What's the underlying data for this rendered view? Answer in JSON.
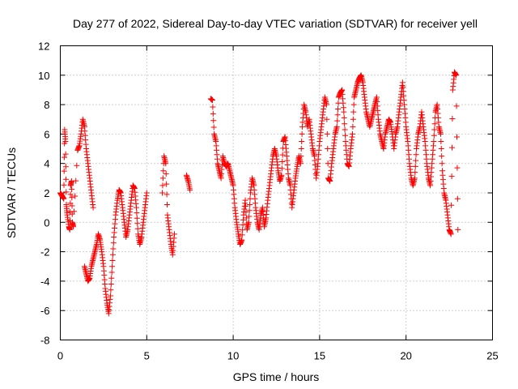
{
  "chart_data": {
    "type": "scatter",
    "title": "Day 277 of 2022, Sidereal Day-to-day VTEC variation (SDTVAR) for receiver yell",
    "xlabel": "GPS time / hours",
    "ylabel": "SDTVAR / TECUs",
    "xlim": [
      0,
      25
    ],
    "ylim": [
      -8,
      12
    ],
    "xticks": [
      0,
      5,
      10,
      15,
      20,
      25
    ],
    "yticks": [
      -8,
      -6,
      -4,
      -2,
      0,
      2,
      4,
      6,
      8,
      10,
      12
    ],
    "grid": true,
    "marker": "+",
    "color": "#ff0000",
    "series": [
      {
        "name": "SDTVAR",
        "x": [
          0.0,
          0.1,
          0.2,
          0.25,
          0.3,
          0.35,
          0.4,
          0.5,
          0.55,
          0.6,
          0.65,
          0.7,
          0.75,
          1.0,
          1.1,
          1.2,
          1.3,
          1.4,
          1.5,
          1.6,
          1.7,
          1.8,
          1.9,
          1.4,
          1.5,
          1.6,
          1.7,
          1.8,
          1.9,
          2.0,
          2.1,
          2.2,
          2.3,
          2.4,
          2.5,
          2.6,
          2.7,
          2.8,
          2.9,
          3.0,
          3.1,
          3.2,
          3.3,
          3.4,
          3.5,
          3.6,
          3.7,
          3.8,
          3.9,
          4.0,
          4.1,
          4.2,
          4.3,
          4.4,
          4.5,
          4.6,
          4.7,
          4.8,
          4.9,
          5.0,
          5.9,
          6.0,
          6.1,
          6.2,
          6.3,
          6.4,
          6.5,
          6.6,
          7.3,
          7.4,
          7.5,
          8.7,
          8.8,
          8.9,
          9.0,
          9.1,
          9.2,
          9.3,
          9.4,
          9.5,
          9.6,
          9.7,
          9.8,
          9.9,
          10.0,
          10.1,
          10.2,
          10.3,
          10.4,
          10.5,
          10.6,
          10.7,
          10.8,
          10.9,
          11.0,
          11.1,
          11.2,
          11.3,
          11.4,
          11.5,
          11.6,
          11.7,
          11.8,
          11.9,
          12.0,
          12.1,
          12.2,
          12.3,
          12.4,
          12.5,
          12.6,
          12.7,
          12.8,
          12.9,
          13.0,
          13.1,
          13.2,
          13.3,
          13.4,
          13.5,
          13.6,
          13.7,
          13.8,
          13.9,
          14.0,
          14.1,
          14.2,
          14.3,
          14.4,
          14.5,
          14.6,
          14.7,
          14.8,
          14.9,
          15.0,
          15.1,
          15.2,
          15.3,
          15.4,
          15.5,
          15.6,
          15.7,
          15.8,
          15.9,
          16.0,
          16.1,
          16.2,
          16.3,
          16.4,
          16.5,
          16.6,
          16.7,
          16.8,
          16.9,
          17.0,
          17.1,
          17.2,
          17.3,
          17.4,
          17.5,
          17.6,
          17.7,
          17.8,
          17.9,
          18.0,
          18.1,
          18.2,
          18.3,
          18.4,
          18.5,
          18.6,
          18.7,
          18.8,
          18.9,
          19.0,
          19.1,
          19.2,
          19.3,
          19.4,
          19.5,
          19.6,
          19.7,
          19.8,
          19.9,
          20.0,
          20.1,
          20.2,
          20.3,
          20.4,
          20.5,
          20.6,
          20.7,
          20.8,
          20.9,
          21.0,
          21.1,
          21.2,
          21.3,
          21.4,
          21.5,
          21.6,
          21.7,
          21.8,
          21.9,
          22.0,
          22.1,
          22.2,
          22.3,
          22.4,
          22.5,
          22.6,
          22.7,
          22.8,
          22.9,
          23.0
        ],
        "y": [
          2.0,
          1.8,
          1.6,
          6.3,
          5.5,
          1.2,
          0.5,
          -0.3,
          -0.5,
          2.5,
          2.8,
          0.0,
          -0.3,
          4.9,
          5.2,
          6.0,
          7.0,
          6.5,
          5.0,
          4.0,
          3.0,
          2.0,
          1.0,
          -3.0,
          -3.5,
          -4.0,
          -3.8,
          -3.0,
          -2.5,
          -2.0,
          -1.5,
          -0.8,
          -1.2,
          -2.0,
          -3.0,
          -4.5,
          -5.5,
          -6.2,
          -5.0,
          -3.0,
          -1.0,
          0.5,
          1.5,
          2.2,
          2.0,
          1.0,
          0.0,
          -1.0,
          -0.5,
          0.5,
          1.5,
          2.5,
          2.3,
          1.0,
          -0.8,
          -1.5,
          -1.0,
          0.0,
          1.0,
          2.0,
          2.0,
          4.5,
          4.0,
          0.5,
          -0.5,
          -1.5,
          -2.2,
          -0.8,
          3.2,
          2.8,
          2.2,
          8.4,
          8.3,
          6.0,
          5.5,
          4.0,
          3.5,
          3.0,
          4.5,
          4.0,
          3.8,
          4.0,
          3.5,
          3.0,
          2.5,
          1.0,
          0.0,
          -0.8,
          -1.5,
          -1.2,
          0.5,
          1.5,
          -0.5,
          0.0,
          2.0,
          3.0,
          2.5,
          1.0,
          0.0,
          -0.5,
          0.5,
          1.0,
          -0.3,
          0.3,
          1.5,
          2.5,
          3.5,
          4.5,
          5.0,
          4.5,
          3.5,
          2.8,
          3.2,
          5.5,
          5.8,
          4.5,
          3.0,
          2.5,
          1.0,
          2.0,
          3.0,
          3.8,
          4.5,
          4.0,
          6.5,
          8.0,
          7.5,
          6.5,
          7.0,
          6.0,
          5.0,
          4.5,
          3.0,
          4.0,
          5.5,
          6.5,
          7.5,
          8.5,
          8.0,
          3.0,
          2.8,
          4.0,
          5.0,
          6.0,
          6.5,
          8.5,
          8.8,
          9.0,
          7.5,
          5.5,
          4.0,
          3.8,
          5.0,
          6.0,
          8.5,
          9.0,
          9.5,
          9.8,
          10.0,
          9.5,
          8.5,
          7.5,
          7.0,
          6.5,
          7.0,
          7.5,
          8.0,
          8.5,
          7.0,
          6.0,
          5.5,
          5.0,
          6.0,
          6.5,
          7.0,
          6.8,
          6.0,
          5.0,
          6.0,
          6.5,
          7.5,
          8.5,
          9.5,
          8.0,
          6.5,
          5.5,
          4.0,
          3.0,
          2.5,
          3.0,
          5.0,
          6.0,
          6.5,
          7.5,
          6.5,
          5.5,
          4.0,
          3.0,
          2.5,
          4.0,
          5.5,
          7.5,
          8.0,
          6.5,
          6.0,
          3.5,
          2.0,
          1.5,
          0.5,
          -0.5,
          -0.8,
          9.0,
          10.2,
          10.0,
          -0.5
        ]
      }
    ]
  }
}
